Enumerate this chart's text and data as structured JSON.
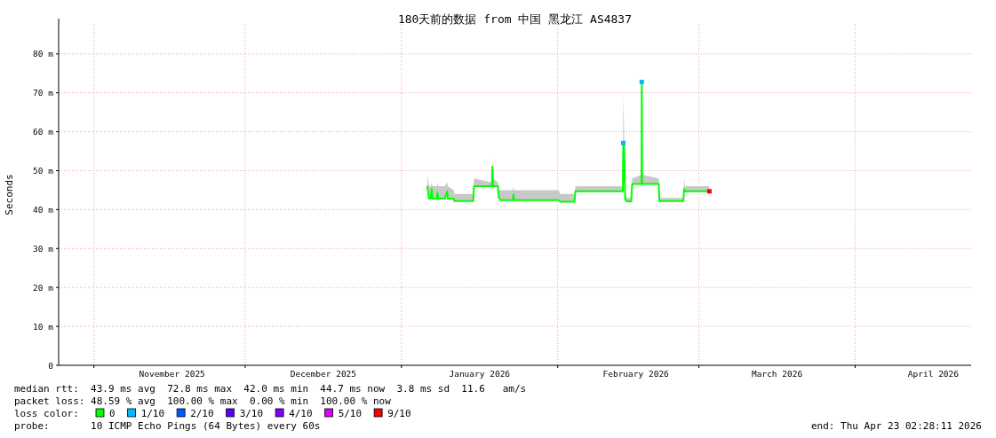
{
  "chart_data": {
    "type": "line",
    "title": "180天前的数据 from 中国 黑龙江 AS4837",
    "ylabel": "Seconds",
    "xlim": [
      "2025-10-25T00:00",
      "2026-04-24T00:00"
    ],
    "ylim": [
      0,
      87.7
    ],
    "xticks": [
      {
        "value": "2025-11-01",
        "label": null
      },
      {
        "value": "2025-12-01",
        "label": null
      },
      {
        "value": "2026-01-01",
        "label": null
      },
      {
        "value": "2026-02-01",
        "label": null
      },
      {
        "value": "2026-03-01",
        "label": null
      },
      {
        "value": "2026-04-01",
        "label": null
      },
      {
        "value": "2025-11-16T12:00",
        "label": "November 2025"
      },
      {
        "value": "2025-12-16T12:00",
        "label": "December 2025"
      },
      {
        "value": "2026-01-16T12:00",
        "label": "January 2026"
      },
      {
        "value": "2026-02-16T12:00",
        "label": "February 2026"
      },
      {
        "value": "2026-03-16T12:00",
        "label": "March 2026"
      },
      {
        "value": "2026-04-16T12:00",
        "label": "April 2026"
      }
    ],
    "yticks": [
      0,
      {
        "value": 10,
        "label": "10 m"
      },
      {
        "value": 20,
        "label": "20 m"
      },
      {
        "value": 30,
        "label": "30 m"
      },
      {
        "value": 40,
        "label": "40 m"
      },
      {
        "value": 50,
        "label": "50 m"
      },
      {
        "value": 60,
        "label": "60 m"
      },
      {
        "value": 70,
        "label": "70 m"
      },
      {
        "value": 80,
        "label": "80 m"
      }
    ],
    "grid": true,
    "legend": "bottom",
    "legend_title": "loss color:",
    "marker": "none",
    "line_style": "solid",
    "x": [
      "2026-01-06T03:00",
      "2026-01-06T11:00",
      "2026-01-06T19:00",
      "2026-01-07T00:00",
      "2026-01-07T04:00",
      "2026-01-08T01:00",
      "2026-01-08T04:00",
      "2026-01-08T07:00",
      "2026-01-09T15:00",
      "2026-01-10T02:00",
      "2026-01-10T05:00",
      "2026-01-11T09:00",
      "2026-01-11T12:00",
      "2026-01-15T06:00",
      "2026-01-15T09:00",
      "2026-01-18T23:00",
      "2026-01-19T01:00",
      "2026-01-19T04:00",
      "2026-01-20T04:00",
      "2026-01-20T07:00",
      "2026-01-20T18:00",
      "2026-01-23T03:00",
      "2026-01-23T05:00",
      "2026-01-23T08:00",
      "2026-02-01T04:00",
      "2026-02-01T12:00",
      "2026-02-04T08:00",
      "2026-02-04T12:00",
      "2026-02-13T22:00",
      "2026-02-14T00:00",
      "2026-02-14T04:00",
      "2026-02-14T09:00",
      "2026-02-14T17:00",
      "2026-02-15T14:00",
      "2026-02-15T18:00",
      "2026-02-17T15:00",
      "2026-02-17T16:00",
      "2026-02-17T18:00",
      "2026-02-21T01:00",
      "2026-02-21T04:00",
      "2026-02-25T22:00",
      "2026-02-26T02:00",
      "2026-02-26T06:00",
      "2026-03-03T02:00"
    ],
    "series": [
      {
        "name": "0",
        "color": "#00ff00",
        "values": [
          45.9,
          42.8,
          42.8,
          45.3,
          42.8,
          42.8,
          44.4,
          42.8,
          42.8,
          44.7,
          42.8,
          42.8,
          42.2,
          42.2,
          46.0,
          46.0,
          51.0,
          46.0,
          46.0,
          43.1,
          42.4,
          42.4,
          43.9,
          42.4,
          42.4,
          42.0,
          42.0,
          44.7,
          44.7,
          57.1,
          57.1,
          42.6,
          42.1,
          42.1,
          46.6,
          46.6,
          72.8,
          46.6,
          46.6,
          42.2,
          42.2,
          45.3,
          44.7,
          44.7
        ],
        "lower": [
          45.9,
          42.8,
          42.8,
          45.3,
          42.8,
          42.8,
          44.4,
          42.8,
          42.8,
          44.7,
          42.8,
          42.8,
          42.2,
          42.2,
          46.0,
          46.0,
          51.0,
          46.0,
          46.0,
          43.1,
          42.4,
          42.4,
          43.9,
          42.4,
          42.4,
          42.0,
          42.0,
          44.7,
          44.7,
          57.1,
          57.1,
          42.6,
          42.1,
          42.1,
          46.6,
          46.6,
          72.8,
          46.6,
          46.6,
          42.2,
          42.2,
          45.3,
          44.7,
          44.7
        ],
        "upper": [
          49,
          46,
          46,
          47,
          46,
          46,
          47,
          46,
          46,
          47,
          46,
          45,
          44,
          44,
          48,
          47,
          53.3,
          48,
          47,
          45,
          45,
          45,
          46,
          45,
          45,
          44,
          44,
          46,
          46,
          69.3,
          60,
          45,
          43,
          43,
          48,
          49,
          72.8,
          49,
          48,
          43,
          43,
          48,
          46,
          46
        ]
      },
      {
        "name": "1/10",
        "color": "#00b8ff",
        "type": "scatter",
        "marker": "square",
        "values": [
          null,
          null,
          null,
          null,
          null,
          null,
          null,
          null,
          null,
          null,
          null,
          null,
          null,
          null,
          null,
          null,
          null,
          null,
          null,
          null,
          null,
          null,
          null,
          null,
          null,
          null,
          null,
          null,
          null,
          57.1,
          null,
          null,
          null,
          null,
          null,
          null,
          72.8,
          null,
          null,
          null,
          null,
          null,
          null,
          null
        ]
      },
      {
        "name": "2/10",
        "color": "#0059ff",
        "type": "scatter",
        "marker": "square",
        "values": [
          null,
          null,
          null,
          null,
          null,
          null,
          null,
          null,
          null,
          null,
          null,
          null,
          null,
          null,
          null,
          null,
          null,
          null,
          null,
          null,
          null,
          null,
          null,
          null,
          null,
          null,
          null,
          null,
          null,
          null,
          null,
          null,
          null,
          null,
          null,
          null,
          null,
          null,
          null,
          null,
          null,
          null,
          null,
          null
        ]
      },
      {
        "name": "3/10",
        "color": "#5e00ff",
        "type": "scatter",
        "marker": "square",
        "values": [
          null,
          null,
          null,
          null,
          null,
          null,
          null,
          null,
          null,
          null,
          null,
          null,
          null,
          null,
          null,
          null,
          null,
          null,
          null,
          null,
          null,
          null,
          null,
          null,
          null,
          null,
          null,
          null,
          null,
          null,
          null,
          null,
          null,
          null,
          null,
          null,
          null,
          null,
          null,
          null,
          null,
          null,
          null,
          null
        ]
      },
      {
        "name": "4/10",
        "color": "#7e00ff",
        "type": "scatter",
        "marker": "square",
        "values": [
          null,
          null,
          null,
          null,
          null,
          null,
          null,
          null,
          null,
          null,
          null,
          null,
          null,
          null,
          null,
          null,
          null,
          null,
          null,
          null,
          null,
          null,
          null,
          null,
          null,
          null,
          null,
          null,
          null,
          null,
          null,
          null,
          null,
          null,
          null,
          null,
          null,
          null,
          null,
          null,
          null,
          null,
          null,
          null
        ]
      },
      {
        "name": "5/10",
        "color": "#dd00ff",
        "type": "scatter",
        "marker": "square",
        "values": [
          null,
          null,
          null,
          null,
          null,
          null,
          null,
          null,
          null,
          null,
          null,
          null,
          null,
          null,
          null,
          null,
          null,
          null,
          null,
          null,
          null,
          null,
          null,
          null,
          null,
          null,
          null,
          null,
          null,
          null,
          null,
          null,
          null,
          null,
          null,
          null,
          null,
          null,
          null,
          null,
          null,
          null,
          null,
          null
        ]
      },
      {
        "name": "9/10",
        "color": "#ff0000",
        "type": "scatter",
        "marker": "square",
        "values": [
          null,
          null,
          null,
          null,
          null,
          null,
          null,
          null,
          null,
          null,
          null,
          null,
          null,
          null,
          null,
          null,
          null,
          null,
          null,
          null,
          null,
          null,
          null,
          null,
          null,
          null,
          null,
          null,
          null,
          null,
          null,
          null,
          null,
          null,
          null,
          null,
          null,
          null,
          null,
          null,
          null,
          null,
          null,
          44.7
        ]
      }
    ],
    "annotations": [
      "median rtt:  43.9 ms avg  72.8 ms max  42.0 ms min  44.7 ms now  3.8 ms sd  11.6   am/s",
      "packet loss: 48.59 % avg  100.00 % max  0.00 % min  100.00 % now",
      "probe:       10 ICMP Echo Pings (64 Bytes) every 60s",
      "end: Thu Apr 23 02:28:11 2026"
    ]
  }
}
